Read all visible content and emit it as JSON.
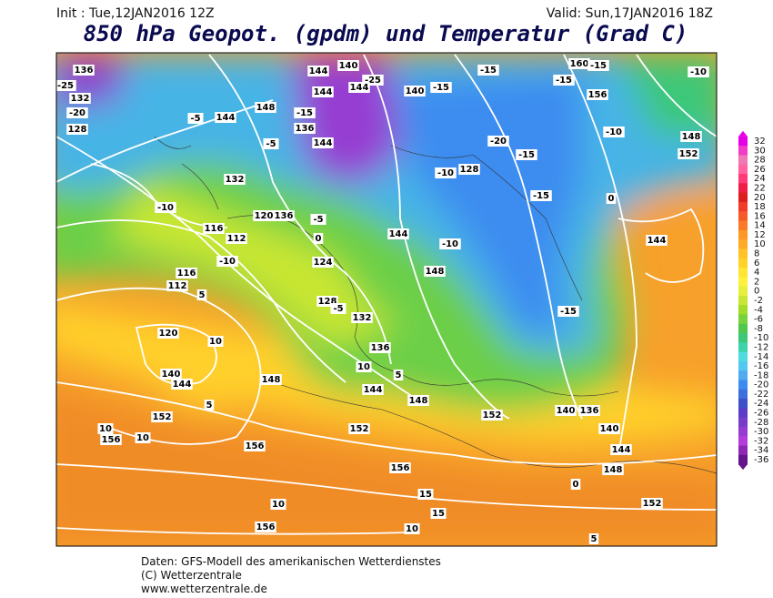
{
  "header": {
    "init": "Init : Tue,12JAN2016 12Z",
    "valid": "Valid: Sun,17JAN2016 18Z",
    "title": "850 hPa Geopot. (gpdm) und Temperatur (Grad C)"
  },
  "colorbar": {
    "labels": [
      32,
      30,
      28,
      26,
      24,
      22,
      20,
      18,
      16,
      14,
      12,
      10,
      8,
      6,
      4,
      2,
      0,
      -2,
      -4,
      -6,
      -8,
      -10,
      -12,
      -14,
      -16,
      -18,
      -20,
      -22,
      -24,
      -26,
      -28,
      -30,
      -32,
      -34,
      -36
    ],
    "colors": [
      "#e600e6",
      "#f03cc8",
      "#f078b4",
      "#ff64a0",
      "#ff3c78",
      "#f01e46",
      "#dc1e1e",
      "#f03c28",
      "#f55a28",
      "#fa7828",
      "#ff9628",
      "#ffaa28",
      "#ffc328",
      "#ffd228",
      "#ffe632",
      "#fff03c",
      "#e6f03c",
      "#c8e632",
      "#a0dc28",
      "#78d23c",
      "#50c850",
      "#3cc878",
      "#3cd2aa",
      "#50dcdc",
      "#50c8f0",
      "#50aaf0",
      "#3c8cf0",
      "#3c6edc",
      "#3c50c8",
      "#5a3cc8",
      "#783cc8",
      "#963cd2",
      "#b43cdc",
      "#8c28b4",
      "#64148c"
    ]
  },
  "map": {
    "labels": [
      136,
      -25,
      132,
      -20,
      128,
      144,
      140,
      -25,
      144,
      144,
      140,
      -15,
      -15,
      160,
      -15,
      -15,
      156,
      -10,
      148,
      -15,
      144,
      -5,
      136,
      144,
      -20,
      -15,
      -10,
      148,
      152,
      -5,
      132,
      -10,
      128,
      -15,
      0,
      -10,
      120,
      136,
      -5,
      116,
      112,
      -10,
      0,
      144,
      -10,
      124,
      116,
      112,
      5,
      148,
      144,
      128,
      -5,
      132,
      -15,
      120,
      10,
      136,
      140,
      144,
      148,
      10,
      5,
      144,
      148,
      5,
      152,
      152,
      140,
      136,
      152,
      140,
      10,
      156,
      10,
      156,
      144,
      156,
      148,
      15,
      0,
      10,
      152,
      15,
      156,
      10,
      5
    ]
  },
  "footer": {
    "line1": "Daten: GFS-Modell des amerikanischen Wetterdienstes",
    "line2": "(C) Wetterzentrale",
    "line3": "www.wetterzentrale.de"
  }
}
